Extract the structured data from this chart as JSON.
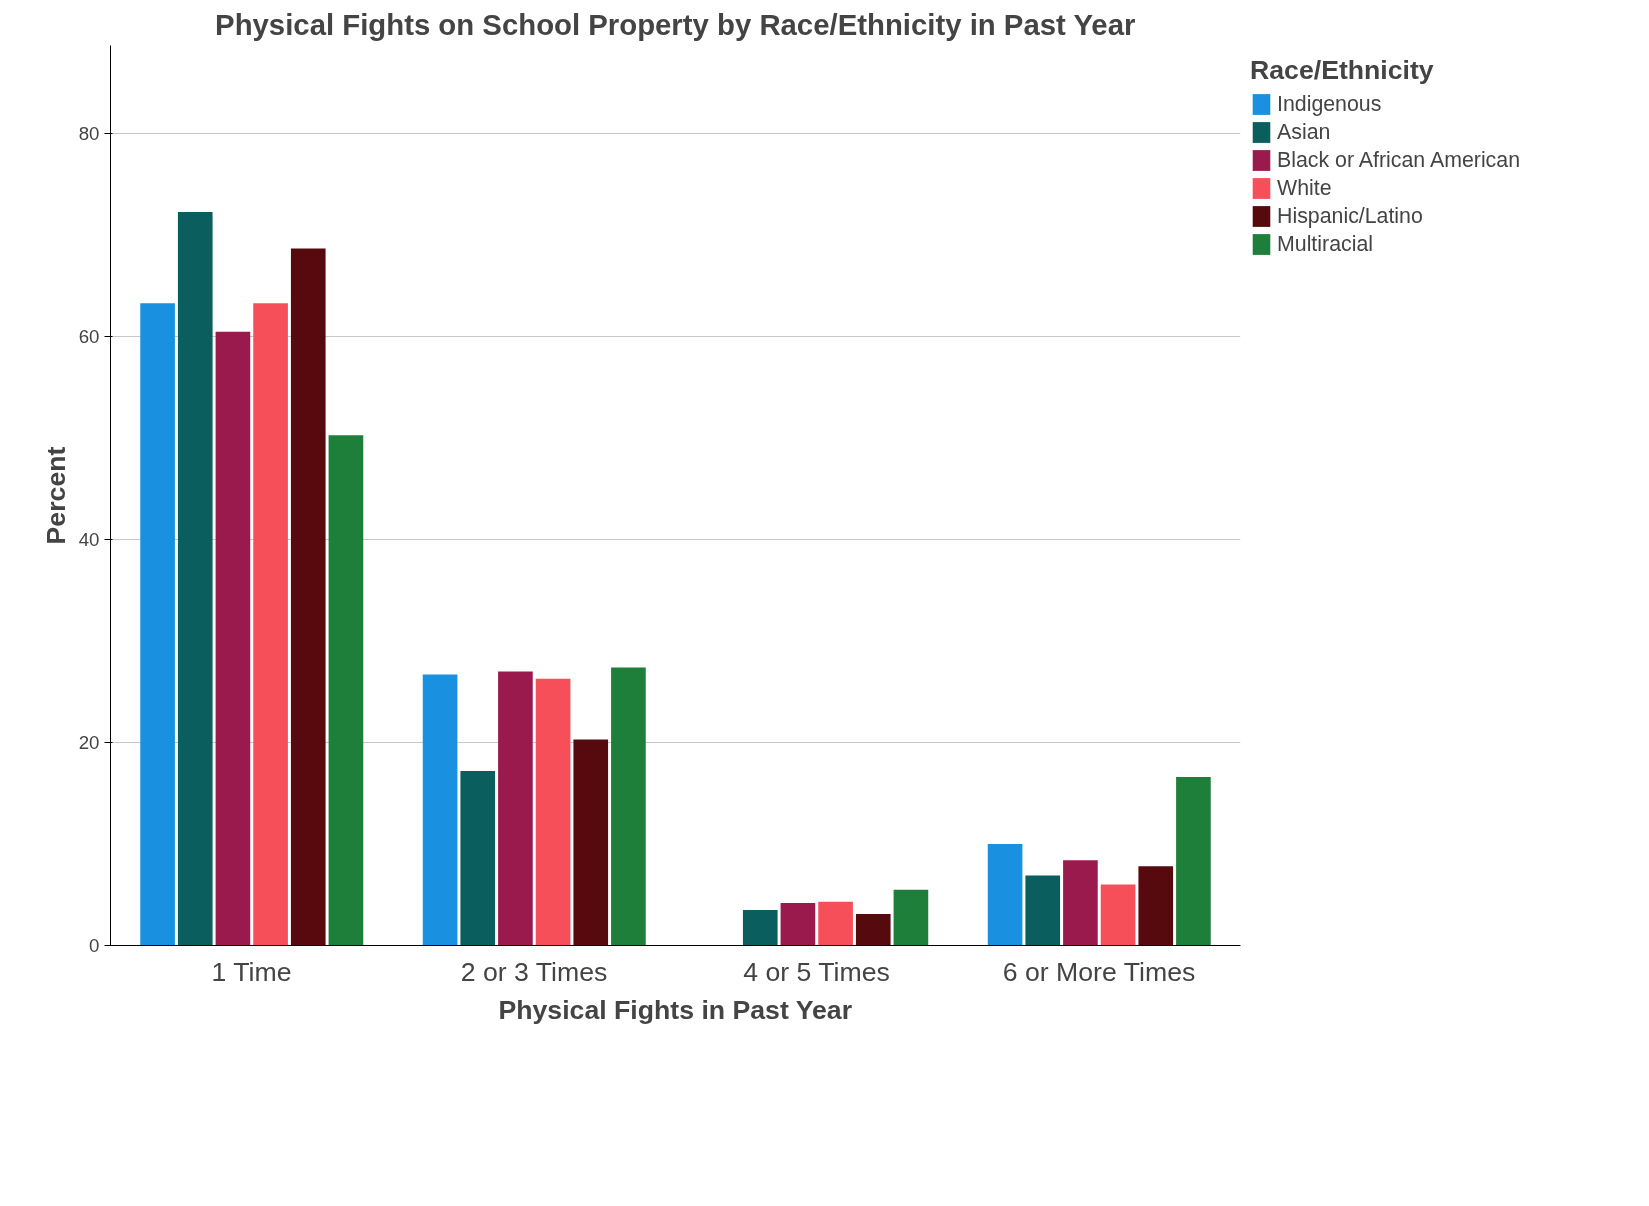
{
  "chart_data": {
    "type": "bar",
    "title": "Physical Fights on School Property by Race/Ethnicity in Past Year",
    "xlabel": "Physical Fights in Past Year",
    "ylabel": "Percent",
    "legend_title": "Race/Ethnicity",
    "categories": [
      "1 Time",
      "2 or 3 Times",
      "4 or 5 Times",
      "6 or More Times"
    ],
    "series": [
      {
        "name": "Indigenous",
        "color": "#1a90e0",
        "values": [
          63.3,
          26.7,
          null,
          10.0
        ]
      },
      {
        "name": "Asian",
        "color": "#0a5e5e",
        "values": [
          72.3,
          17.2,
          3.5,
          6.9
        ]
      },
      {
        "name": "Black or African American",
        "color": "#9b1a4e",
        "values": [
          60.5,
          27.0,
          4.2,
          8.4
        ]
      },
      {
        "name": "White",
        "color": "#f74f5a",
        "values": [
          63.3,
          26.3,
          4.3,
          6.0
        ]
      },
      {
        "name": "Hispanic/Latino",
        "color": "#560a0e",
        "values": [
          68.7,
          20.3,
          3.1,
          7.8
        ]
      },
      {
        "name": "Multiracial",
        "color": "#1d7f3a",
        "values": [
          50.3,
          27.4,
          5.5,
          16.6
        ]
      }
    ],
    "ylim": [
      0,
      88.7
    ],
    "yticks": [
      0,
      20,
      40,
      60,
      80
    ],
    "grid": "y",
    "legend": "top right"
  }
}
